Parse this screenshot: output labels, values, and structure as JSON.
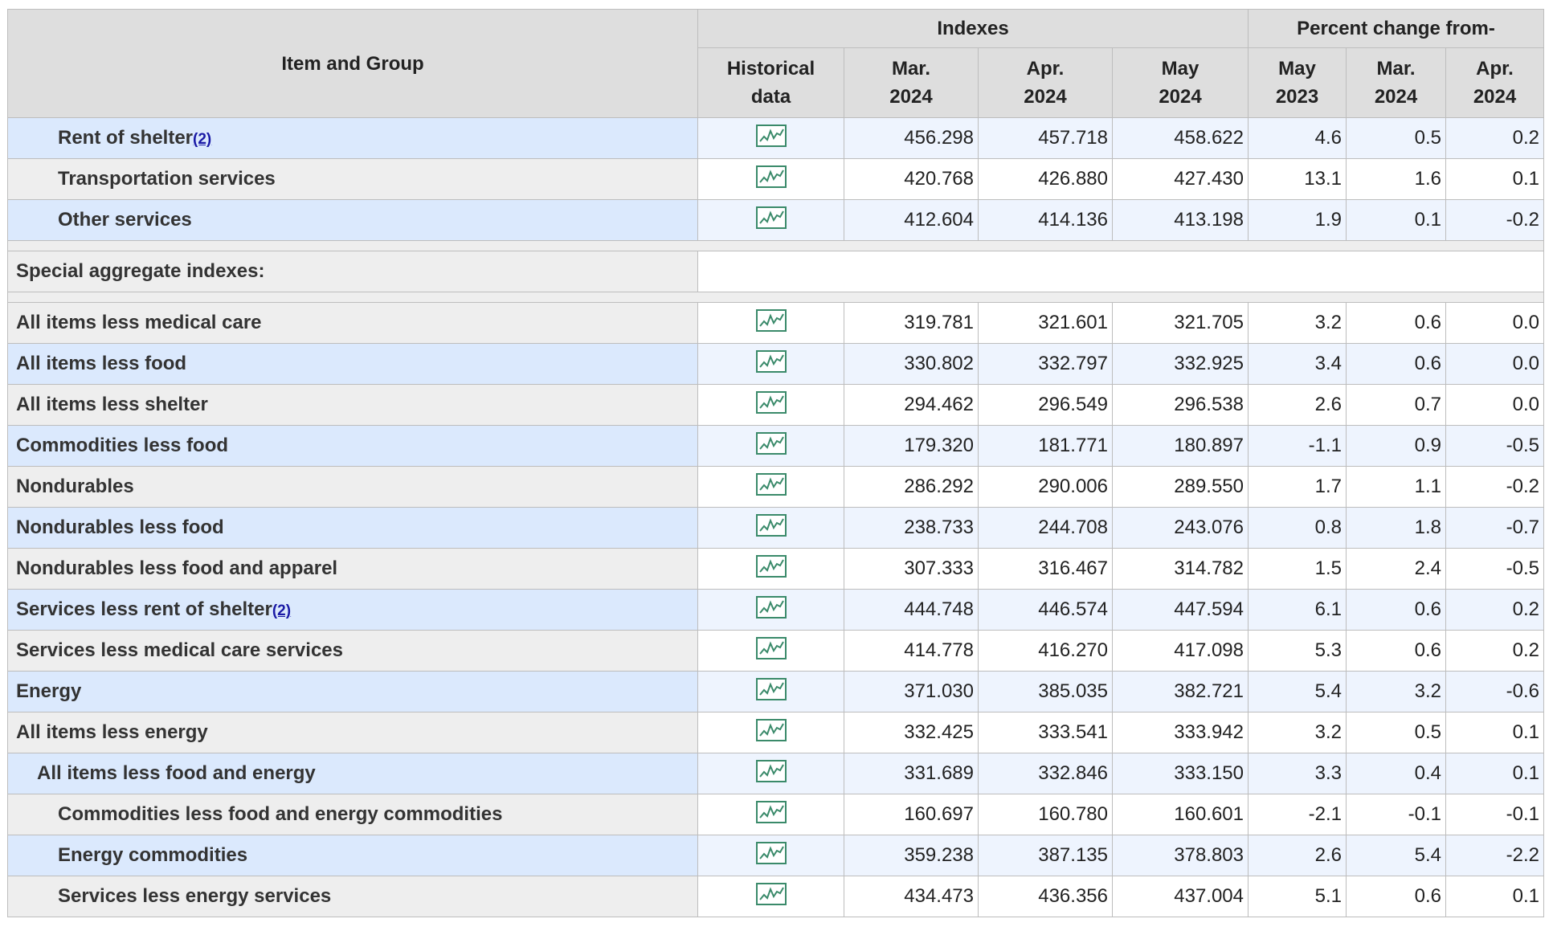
{
  "header": {
    "item": "Item and Group",
    "indexes": "Indexes",
    "percent": "Percent change from-",
    "historical": "Historical data",
    "months": [
      "Mar. 2024",
      "Apr. 2024",
      "May 2024",
      "May 2023",
      "Mar. 2024",
      "Apr. 2024"
    ]
  },
  "rows": [
    {
      "label": "Rent of shelter",
      "footnote": "(2)",
      "level": 2,
      "values": [
        "456.298",
        "457.718",
        "458.622",
        "4.6",
        "0.5",
        "0.2"
      ]
    },
    {
      "label": "Transportation services",
      "level": 2,
      "values": [
        "420.768",
        "426.880",
        "427.430",
        "13.1",
        "1.6",
        "0.1"
      ]
    },
    {
      "label": "Other services",
      "level": 2,
      "values": [
        "412.604",
        "414.136",
        "413.198",
        "1.9",
        "0.1",
        "-0.2"
      ]
    }
  ],
  "special": {
    "title": "Special aggregate indexes:",
    "rows": [
      {
        "label": "All items less medical care",
        "level": 0,
        "values": [
          "319.781",
          "321.601",
          "321.705",
          "3.2",
          "0.6",
          "0.0"
        ]
      },
      {
        "label": "All items less food",
        "level": 0,
        "values": [
          "330.802",
          "332.797",
          "332.925",
          "3.4",
          "0.6",
          "0.0"
        ]
      },
      {
        "label": "All items less shelter",
        "level": 0,
        "values": [
          "294.462",
          "296.549",
          "296.538",
          "2.6",
          "0.7",
          "0.0"
        ]
      },
      {
        "label": "Commodities less food",
        "level": 0,
        "values": [
          "179.320",
          "181.771",
          "180.897",
          "-1.1",
          "0.9",
          "-0.5"
        ]
      },
      {
        "label": "Nondurables",
        "level": 0,
        "values": [
          "286.292",
          "290.006",
          "289.550",
          "1.7",
          "1.1",
          "-0.2"
        ]
      },
      {
        "label": "Nondurables less food",
        "level": 0,
        "values": [
          "238.733",
          "244.708",
          "243.076",
          "0.8",
          "1.8",
          "-0.7"
        ]
      },
      {
        "label": "Nondurables less food and apparel",
        "level": 0,
        "values": [
          "307.333",
          "316.467",
          "314.782",
          "1.5",
          "2.4",
          "-0.5"
        ]
      },
      {
        "label": "Services less rent of shelter",
        "footnote": "(2)",
        "level": 0,
        "values": [
          "444.748",
          "446.574",
          "447.594",
          "6.1",
          "0.6",
          "0.2"
        ]
      },
      {
        "label": "Services less medical care services",
        "level": 0,
        "values": [
          "414.778",
          "416.270",
          "417.098",
          "5.3",
          "0.6",
          "0.2"
        ]
      },
      {
        "label": "Energy",
        "level": 0,
        "values": [
          "371.030",
          "385.035",
          "382.721",
          "5.4",
          "3.2",
          "-0.6"
        ]
      },
      {
        "label": "All items less energy",
        "level": 0,
        "values": [
          "332.425",
          "333.541",
          "333.942",
          "3.2",
          "0.5",
          "0.1"
        ]
      },
      {
        "label": "All items less food and energy",
        "level": 1,
        "values": [
          "331.689",
          "332.846",
          "333.150",
          "3.3",
          "0.4",
          "0.1"
        ]
      },
      {
        "label": "Commodities less food and energy commodities",
        "level": 2,
        "values": [
          "160.697",
          "160.780",
          "160.601",
          "-2.1",
          "-0.1",
          "-0.1"
        ]
      },
      {
        "label": "Energy commodities",
        "level": 2,
        "values": [
          "359.238",
          "387.135",
          "378.803",
          "2.6",
          "5.4",
          "-2.2"
        ]
      },
      {
        "label": "Services less energy services",
        "level": 2,
        "values": [
          "434.473",
          "436.356",
          "437.004",
          "5.1",
          "0.6",
          "0.1"
        ]
      }
    ]
  }
}
